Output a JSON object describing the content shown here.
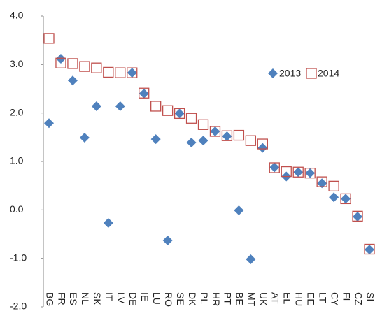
{
  "chart_data": {
    "type": "scatter",
    "categories": [
      "BG",
      "FR",
      "ES",
      "NL",
      "SK",
      "IT",
      "LV",
      "DE",
      "IE",
      "LU",
      "RO",
      "SE",
      "DK",
      "PL",
      "HR",
      "PT",
      "BE",
      "MT",
      "UK",
      "AT",
      "EL",
      "HU",
      "EE",
      "LT",
      "CY",
      "FI",
      "CZ",
      "SI"
    ],
    "series": [
      {
        "name": "2013",
        "color": "#4f81bd",
        "marker": "diamond",
        "values": [
          1.79,
          3.12,
          2.67,
          1.49,
          2.14,
          -0.27,
          2.14,
          2.83,
          2.4,
          1.46,
          -0.63,
          1.99,
          1.39,
          1.43,
          1.62,
          1.52,
          -0.01,
          -1.02,
          1.28,
          0.88,
          0.69,
          0.78,
          0.76,
          0.55,
          0.26,
          0.23,
          -0.14,
          -0.82
        ]
      },
      {
        "name": "2014",
        "color": "#c0504d",
        "marker": "square",
        "values": [
          3.54,
          3.03,
          3.02,
          2.96,
          2.93,
          2.84,
          2.83,
          2.83,
          2.41,
          2.14,
          2.05,
          1.99,
          1.89,
          1.76,
          1.62,
          1.53,
          1.54,
          1.43,
          1.36,
          0.87,
          0.79,
          0.78,
          0.76,
          0.58,
          0.49,
          0.23,
          -0.13,
          -0.81
        ]
      }
    ],
    "ylim": [
      -2,
      4
    ],
    "yticks": [
      {
        "value": -2,
        "label": "-2.0"
      },
      {
        "value": -1,
        "label": "-1.0"
      },
      {
        "value": 0,
        "label": "0.0"
      },
      {
        "value": 1,
        "label": "1.0"
      },
      {
        "value": 2,
        "label": "2.0"
      },
      {
        "value": 3,
        "label": "3.0"
      },
      {
        "value": 4,
        "label": "4.0"
      }
    ],
    "grid": false,
    "legend": "upper right"
  }
}
